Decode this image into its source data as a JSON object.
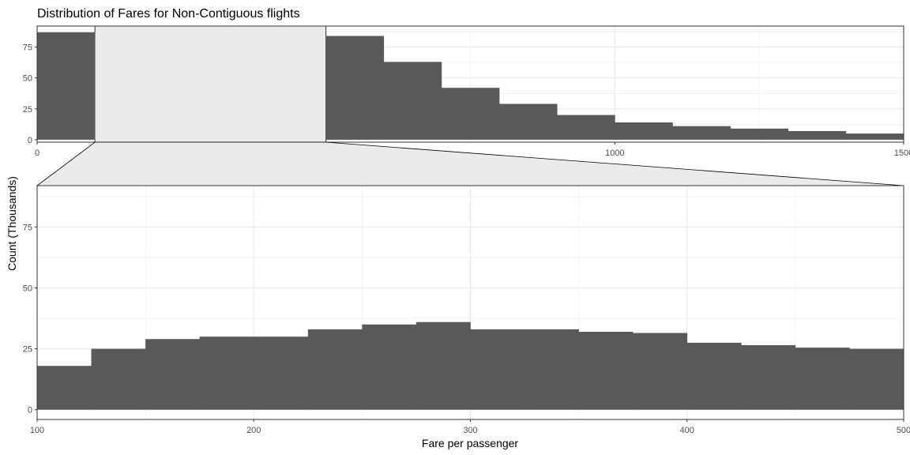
{
  "title": "Distribution of Fares for Non-Contiguous flights",
  "colors": {
    "bar": "#595959",
    "grid": "#ebebeb",
    "zoom_fill": "#ebebeb",
    "border": "#333333",
    "panel_bg": "#ffffff"
  },
  "chart_data": {
    "type": "bar",
    "title": "Distribution of Fares for Non-Contiguous flights",
    "xlabel": "Fare per passenger",
    "ylabel": "Count (Thousands)",
    "zoom_range": [
      100,
      500
    ],
    "overview": {
      "xlim": [
        0,
        1500
      ],
      "ylim": [
        -2,
        92
      ],
      "x_ticks": [
        0,
        500,
        1000,
        1500
      ],
      "x_tick_labels": [
        "0",
        "500",
        "1000",
        "1500"
      ],
      "y_ticks": [
        0,
        25,
        50,
        75
      ],
      "y_tick_labels": [
        "0",
        "25",
        "50",
        "75"
      ],
      "bins": [
        {
          "start": 0,
          "end": 100,
          "value": 87
        },
        {
          "start": 500,
          "end": 600,
          "value": 84
        },
        {
          "start": 600,
          "end": 700,
          "value": 63
        },
        {
          "start": 700,
          "end": 800,
          "value": 42
        },
        {
          "start": 800,
          "end": 900,
          "value": 29
        },
        {
          "start": 900,
          "end": 1000,
          "value": 20
        },
        {
          "start": 1000,
          "end": 1100,
          "value": 14
        },
        {
          "start": 1100,
          "end": 1200,
          "value": 11
        },
        {
          "start": 1200,
          "end": 1300,
          "value": 9
        },
        {
          "start": 1300,
          "end": 1400,
          "value": 7
        },
        {
          "start": 1400,
          "end": 1500,
          "value": 5
        }
      ]
    },
    "zoom": {
      "xlim": [
        100,
        500
      ],
      "ylim": [
        -4,
        92
      ],
      "x_ticks": [
        100,
        200,
        300,
        400,
        500
      ],
      "x_tick_labels": [
        "100",
        "200",
        "300",
        "400",
        "500"
      ],
      "y_ticks": [
        0,
        25,
        50,
        75
      ],
      "y_tick_labels": [
        "0",
        "25",
        "50",
        "75"
      ],
      "bins": [
        {
          "start": 100,
          "end": 125,
          "value": 18
        },
        {
          "start": 125,
          "end": 150,
          "value": 25
        },
        {
          "start": 150,
          "end": 175,
          "value": 29
        },
        {
          "start": 175,
          "end": 200,
          "value": 30
        },
        {
          "start": 200,
          "end": 225,
          "value": 30
        },
        {
          "start": 225,
          "end": 250,
          "value": 33
        },
        {
          "start": 250,
          "end": 275,
          "value": 35
        },
        {
          "start": 275,
          "end": 300,
          "value": 36
        },
        {
          "start": 300,
          "end": 325,
          "value": 33
        },
        {
          "start": 325,
          "end": 350,
          "value": 33
        },
        {
          "start": 350,
          "end": 375,
          "value": 32
        },
        {
          "start": 375,
          "end": 400,
          "value": 31.5
        },
        {
          "start": 400,
          "end": 425,
          "value": 27.5
        },
        {
          "start": 425,
          "end": 450,
          "value": 26.5
        },
        {
          "start": 450,
          "end": 475,
          "value": 25.5
        },
        {
          "start": 475,
          "end": 500,
          "value": 25
        }
      ]
    }
  }
}
